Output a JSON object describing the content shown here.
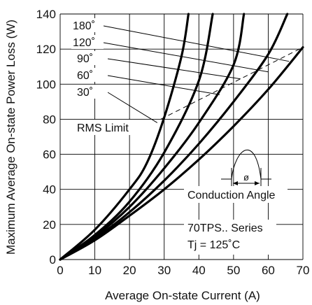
{
  "chart_data": {
    "type": "line",
    "xlabel": "Average On-state Current (A)",
    "ylabel": "Maximum Average On-state Power Loss (W)",
    "xlim": [
      0,
      70
    ],
    "ylim": [
      0,
      140
    ],
    "x_ticks": [
      0,
      10,
      20,
      30,
      40,
      50,
      60,
      70
    ],
    "y_ticks": [
      0,
      20,
      40,
      60,
      80,
      100,
      120,
      140
    ],
    "grid": true,
    "series": [
      {
        "name": "180˚",
        "x": [
          0,
          10,
          20,
          30,
          40,
          50,
          60,
          70
        ],
        "y": [
          0,
          11,
          25,
          40,
          57,
          76,
          97,
          121
        ]
      },
      {
        "name": "120˚",
        "x": [
          0,
          10,
          20,
          30,
          40,
          50,
          60,
          65.5
        ],
        "y": [
          0,
          12,
          27,
          45,
          66,
          90,
          117,
          140
        ]
      },
      {
        "name": "90˚",
        "x": [
          0,
          10,
          20,
          30,
          40,
          50,
          53
        ],
        "y": [
          0,
          13,
          30,
          52,
          78,
          111,
          140
        ]
      },
      {
        "name": "60˚",
        "x": [
          0,
          10,
          20,
          30,
          40,
          44
        ],
        "y": [
          0,
          14,
          33,
          61,
          102,
          140
        ]
      },
      {
        "name": "30˚",
        "x": [
          0,
          10,
          20,
          25,
          30,
          35,
          37
        ],
        "y": [
          0,
          17,
          40,
          55,
          81,
          116,
          140
        ]
      }
    ],
    "rms_limit": {
      "label": "RMS Limit",
      "x": [
        29,
        70
      ],
      "y": [
        80,
        121
      ]
    },
    "annotations": {
      "conduction_angle": "Conduction Angle",
      "conduction_symbol": "ø",
      "device": "70TPS.. Series",
      "tj": "Tj = 125˚C"
    }
  }
}
